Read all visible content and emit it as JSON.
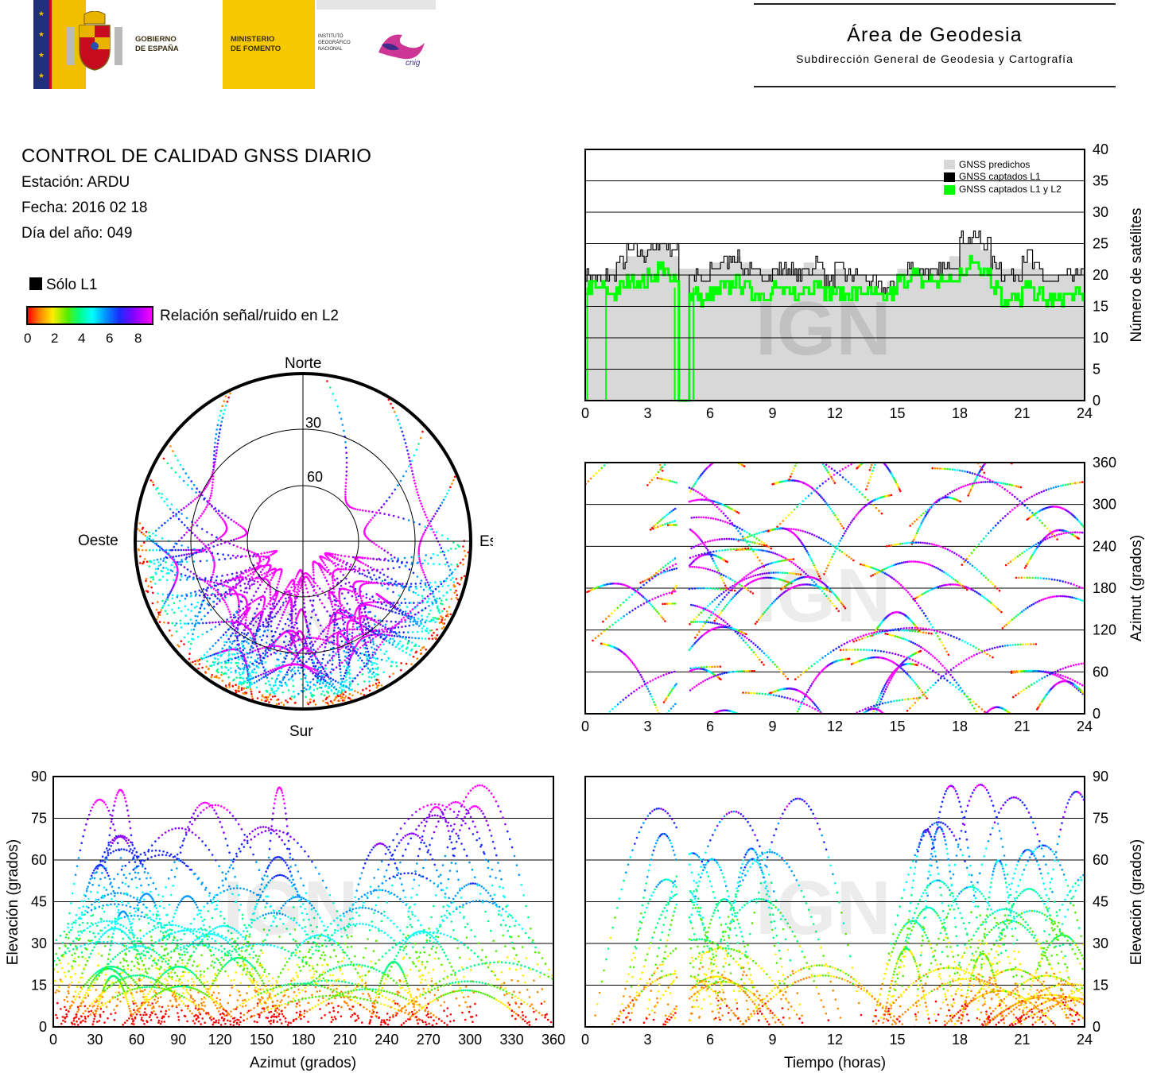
{
  "header": {
    "gov_line1": "GOBIERNO",
    "gov_line2": "DE ESPAÑA",
    "ministry_line1": "MINISTERIO",
    "ministry_line2": "DE FOMENTO",
    "institute_line1": "INSTITUTO",
    "institute_line2": "GEOGRÁFICO",
    "institute_line3": "NACIONAL",
    "cnig": "cnig",
    "area_title": "Área de Geodesia",
    "area_subtitle": "Subdirección General de Geodesia y Cartografía"
  },
  "report": {
    "title": "CONTROL DE CALIDAD GNSS DIARIO",
    "station": "Estación: ARDU",
    "date": "Fecha: 2016 02 18",
    "doy": "Día del año: 049"
  },
  "legend": {
    "l1_only": "Sólo L1",
    "snr_label": "Relación señal/ruido en L2",
    "snr_ticks": [
      "0",
      "2",
      "4",
      "6",
      "8"
    ],
    "snr_colors": [
      "#ff0000",
      "#ffee00",
      "#00ff88",
      "#0099ff",
      "#ff00ff"
    ],
    "l1_color": "#000000"
  },
  "watermark": "IGN",
  "chart_data": [
    {
      "id": "satellite-count",
      "type": "line",
      "legend": [
        "GNSS predichos",
        "GNSS captados L1",
        "GNSS captados L1 y L2"
      ],
      "legend_placement": "top-right",
      "ylabel": "Número de satélites",
      "xlim": [
        0,
        24
      ],
      "ylim": [
        0,
        40
      ],
      "xticks": [
        "0",
        "3",
        "6",
        "9",
        "12",
        "15",
        "18",
        "21",
        "24"
      ],
      "yticks": [
        "0",
        "5",
        "10",
        "15",
        "20",
        "25",
        "30",
        "35",
        "40"
      ],
      "series": [
        {
          "name": "GNSS predichos",
          "color": "#d8d8d8",
          "x": [
            0,
            0.5,
            1,
            1.5,
            2,
            2.5,
            3,
            3.5,
            4,
            4.5,
            5,
            5.5,
            6,
            6.5,
            7,
            7.5,
            8,
            8.5,
            9,
            9.5,
            10,
            10.5,
            11,
            11.5,
            12,
            12.5,
            13,
            13.5,
            14,
            14.5,
            15,
            15.5,
            16,
            16.5,
            17,
            17.5,
            18,
            18.5,
            19,
            19.5,
            20,
            20.5,
            21,
            21.5,
            22,
            22.5,
            23,
            23.5,
            24
          ],
          "y": [
            20,
            20,
            21,
            22,
            23,
            24,
            24,
            25,
            23,
            21,
            21,
            21,
            22,
            22,
            23,
            22,
            21,
            21,
            21,
            21,
            21,
            22,
            21,
            20,
            21,
            20,
            20,
            19,
            18,
            19,
            21,
            21,
            21,
            21,
            22,
            23,
            25,
            25,
            24,
            22,
            21,
            21,
            22,
            21,
            20,
            20,
            20,
            21,
            21
          ]
        },
        {
          "name": "GNSS captados L1",
          "color": "#000000",
          "x": [
            0,
            0.5,
            1,
            1.5,
            2,
            2.5,
            3,
            3.5,
            4,
            4.5,
            5,
            5.5,
            6,
            6.5,
            7,
            7.5,
            8,
            8.5,
            9,
            9.5,
            10,
            10.5,
            11,
            11.5,
            12,
            12.5,
            13,
            13.5,
            14,
            14.5,
            15,
            15.5,
            16,
            16.5,
            17,
            17.5,
            18,
            18.5,
            19,
            19.5,
            20,
            20.5,
            21,
            21.5,
            22,
            22.5,
            23,
            23.5,
            24
          ],
          "y": [
            20,
            19,
            20,
            22,
            24,
            23,
            24,
            25,
            24,
            0,
            20,
            19,
            21,
            22,
            23,
            21,
            20,
            20,
            21,
            21,
            20,
            21,
            22,
            19,
            21,
            20,
            20,
            19,
            18,
            18,
            20,
            21,
            21,
            20,
            21,
            22,
            26,
            26,
            25,
            22,
            20,
            20,
            23,
            21,
            19,
            19,
            20,
            20,
            20
          ]
        },
        {
          "name": "GNSS captados L1 y L2",
          "color": "#00ff00",
          "x": [
            0,
            0.5,
            1,
            1.5,
            2,
            2.5,
            3,
            3.5,
            4,
            4.5,
            5,
            5.5,
            6,
            6.5,
            7,
            7.5,
            8,
            8.5,
            9,
            9.5,
            10,
            10.5,
            11,
            11.5,
            12,
            12.5,
            13,
            13.5,
            14,
            14.5,
            15,
            15.5,
            16,
            16.5,
            17,
            17.5,
            18,
            18.5,
            19,
            19.5,
            20,
            20.5,
            21,
            21.5,
            22,
            22.5,
            23,
            23.5,
            24
          ],
          "y": [
            18,
            18,
            17,
            18,
            19,
            19,
            20,
            21,
            19,
            0,
            17,
            16,
            17,
            18,
            19,
            18,
            17,
            17,
            18,
            17,
            17,
            18,
            19,
            17,
            17,
            17,
            17,
            17,
            16,
            17,
            19,
            20,
            19,
            19,
            19,
            19,
            21,
            22,
            21,
            18,
            16,
            16,
            18,
            17,
            16,
            16,
            17,
            17,
            18
          ]
        }
      ]
    },
    {
      "id": "skyplot",
      "type": "scatter",
      "projection": "polar",
      "direction_labels": {
        "north": "Norte",
        "south": "Sur",
        "west": "Oeste",
        "east": "Este"
      },
      "ring_labels": [
        "30",
        "60"
      ]
    },
    {
      "id": "azimuth-time",
      "type": "scatter",
      "ylabel": "Azimut (grados)",
      "xlim": [
        0,
        24
      ],
      "ylim": [
        0,
        360
      ],
      "xticks": [
        "0",
        "3",
        "6",
        "9",
        "12",
        "15",
        "18",
        "21",
        "24"
      ],
      "yticks": [
        "0",
        "60",
        "120",
        "180",
        "240",
        "300",
        "360"
      ]
    },
    {
      "id": "elevation-azimuth",
      "type": "scatter",
      "xlabel": "Azimut (grados)",
      "ylabel": "Elevación (grados)",
      "xlim": [
        0,
        360
      ],
      "ylim": [
        0,
        90
      ],
      "xticks": [
        "0",
        "30",
        "60",
        "90",
        "120",
        "150",
        "180",
        "210",
        "240",
        "270",
        "300",
        "330",
        "360"
      ],
      "yticks": [
        "0",
        "15",
        "30",
        "45",
        "60",
        "75",
        "90"
      ]
    },
    {
      "id": "elevation-time",
      "type": "scatter",
      "xlabel": "Tiempo (horas)",
      "ylabel": "Elevación (grados)",
      "xlim": [
        0,
        24
      ],
      "ylim": [
        0,
        90
      ],
      "xticks": [
        "0",
        "3",
        "6",
        "9",
        "12",
        "15",
        "18",
        "21",
        "24"
      ],
      "yticks": [
        "0",
        "15",
        "30",
        "45",
        "60",
        "75",
        "90"
      ]
    }
  ]
}
